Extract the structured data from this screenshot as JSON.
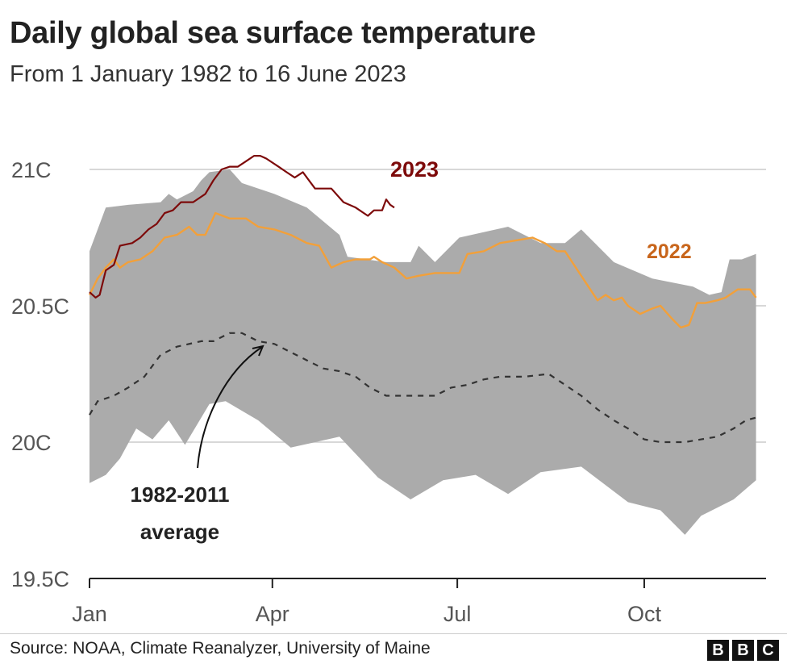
{
  "header": {
    "title": "Daily global sea surface temperature",
    "subtitle": "From 1 January 1982 to 16 June 2023"
  },
  "footer": {
    "source": "Source: NOAA, Climate Reanalyzer, University of Maine",
    "logo": [
      "B",
      "B",
      "C"
    ]
  },
  "chart_data": {
    "type": "line",
    "title": "Daily global sea surface temperature",
    "subtitle": "From 1 January 1982 to 16 June 2023",
    "xlabel": "",
    "ylabel": "",
    "ylim": [
      19.5,
      21.05
    ],
    "yticks": [
      {
        "value": 19.5,
        "label": "19.5C"
      },
      {
        "value": 20,
        "label": "20C"
      },
      {
        "value": 20.5,
        "label": "20.5C"
      },
      {
        "value": 21,
        "label": "21C"
      }
    ],
    "xticks": [
      {
        "date": "Jan 1",
        "label": "Jan"
      },
      {
        "date": "Apr 1",
        "label": "Apr"
      },
      {
        "date": "Jul 1",
        "label": "Jul"
      },
      {
        "date": "Oct 1",
        "label": "Oct"
      }
    ],
    "grid": "horizontal",
    "colors": {
      "y2023": "#7d0a0a",
      "y2022": "#f2a03a",
      "label2022": "#c8651b",
      "range": "#ababab",
      "average": "#333333"
    },
    "range_band": {
      "upper": [
        [
          "Jan 1",
          20.7
        ],
        [
          "Jan 9",
          20.86
        ],
        [
          "Jan 20",
          20.87
        ],
        [
          "Feb 5",
          20.88
        ],
        [
          "Feb 9",
          20.91
        ],
        [
          "Feb 13",
          20.89
        ],
        [
          "Feb 21",
          20.92
        ],
        [
          "Feb 25",
          20.96
        ],
        [
          "Mar 1",
          20.99
        ],
        [
          "Mar 11",
          21.0
        ],
        [
          "Mar 17",
          20.95
        ],
        [
          "Apr 2",
          20.91
        ],
        [
          "Apr 18",
          20.86
        ],
        [
          "May 4",
          20.76
        ],
        [
          "May 8",
          20.68
        ],
        [
          "May 27",
          20.66
        ],
        [
          "Jun 8",
          20.66
        ],
        [
          "Jun 12",
          20.72
        ],
        [
          "Jun 20",
          20.66
        ],
        [
          "Jul 2",
          20.75
        ],
        [
          "Jul 26",
          20.79
        ],
        [
          "Aug 11",
          20.73
        ],
        [
          "Aug 23",
          20.73
        ],
        [
          "Aug 31",
          20.78
        ],
        [
          "Sep 16",
          20.66
        ],
        [
          "Oct 5",
          20.6
        ],
        [
          "Oct 25",
          20.57
        ],
        [
          "Nov 2",
          20.54
        ],
        [
          "Nov 8",
          20.55
        ],
        [
          "Nov 12",
          20.67
        ],
        [
          "Nov 18",
          20.67
        ],
        [
          "Nov 25",
          20.69
        ]
      ],
      "lower": [
        [
          "Jan 1",
          19.85
        ],
        [
          "Jan 9",
          19.88
        ],
        [
          "Jan 16",
          19.94
        ],
        [
          "Jan 24",
          20.05
        ],
        [
          "Feb 1",
          20.01
        ],
        [
          "Feb 9",
          20.08
        ],
        [
          "Feb 17",
          19.99
        ],
        [
          "Mar 1",
          20.14
        ],
        [
          "Mar 9",
          20.15
        ],
        [
          "Mar 25",
          20.08
        ],
        [
          "Apr 10",
          19.98
        ],
        [
          "May 4",
          20.02
        ],
        [
          "May 23",
          19.87
        ],
        [
          "Jun 8",
          19.79
        ],
        [
          "Jun 24",
          19.86
        ],
        [
          "Jul 10",
          19.88
        ],
        [
          "Jul 26",
          19.81
        ],
        [
          "Aug 11",
          19.89
        ],
        [
          "Aug 31",
          19.91
        ],
        [
          "Sep 23",
          19.78
        ],
        [
          "Oct 9",
          19.75
        ],
        [
          "Oct 21",
          19.66
        ],
        [
          "Oct 29",
          19.73
        ],
        [
          "Nov 14",
          19.79
        ],
        [
          "Nov 25",
          19.86
        ]
      ]
    },
    "series": [
      {
        "name": "2023",
        "points": [
          [
            "Jan 1",
            20.55
          ],
          [
            "Jan 4",
            20.53
          ],
          [
            "Jan 6",
            20.54
          ],
          [
            "Jan 9",
            20.63
          ],
          [
            "Jan 13",
            20.65
          ],
          [
            "Jan 16",
            20.72
          ],
          [
            "Jan 22",
            20.73
          ],
          [
            "Jan 26",
            20.75
          ],
          [
            "Jan 30",
            20.78
          ],
          [
            "Feb 3",
            20.8
          ],
          [
            "Feb 7",
            20.84
          ],
          [
            "Feb 11",
            20.85
          ],
          [
            "Feb 15",
            20.88
          ],
          [
            "Feb 21",
            20.88
          ],
          [
            "Feb 27",
            20.91
          ],
          [
            "Mar 3",
            20.96
          ],
          [
            "Mar 7",
            21.0
          ],
          [
            "Mar 11",
            21.01
          ],
          [
            "Mar 15",
            21.01
          ],
          [
            "Mar 19",
            21.03
          ],
          [
            "Mar 23",
            21.05
          ],
          [
            "Mar 26",
            21.05
          ],
          [
            "Mar 29",
            21.04
          ],
          [
            "Apr 4",
            21.01
          ],
          [
            "Apr 8",
            20.99
          ],
          [
            "Apr 12",
            20.97
          ],
          [
            "Apr 16",
            20.99
          ],
          [
            "Apr 22",
            20.93
          ],
          [
            "Apr 30",
            20.93
          ],
          [
            "May 6",
            20.88
          ],
          [
            "May 12",
            20.86
          ],
          [
            "May 18",
            20.83
          ],
          [
            "May 21",
            20.85
          ],
          [
            "May 25",
            20.85
          ],
          [
            "May 27",
            20.89
          ],
          [
            "May 29",
            20.87
          ],
          [
            "May 31",
            20.86
          ]
        ]
      },
      {
        "name": "2022",
        "points": [
          [
            "Jan 1",
            20.54
          ],
          [
            "Jan 5",
            20.6
          ],
          [
            "Jan 9",
            20.64
          ],
          [
            "Jan 13",
            20.67
          ],
          [
            "Jan 16",
            20.64
          ],
          [
            "Jan 20",
            20.66
          ],
          [
            "Jan 26",
            20.67
          ],
          [
            "Feb 1",
            20.7
          ],
          [
            "Feb 7",
            20.75
          ],
          [
            "Feb 13",
            20.76
          ],
          [
            "Feb 19",
            20.79
          ],
          [
            "Feb 23",
            20.76
          ],
          [
            "Feb 27",
            20.76
          ],
          [
            "Mar 4",
            20.84
          ],
          [
            "Mar 11",
            20.82
          ],
          [
            "Mar 19",
            20.82
          ],
          [
            "Mar 25",
            20.79
          ],
          [
            "Apr 2",
            20.78
          ],
          [
            "Apr 10",
            20.76
          ],
          [
            "Apr 18",
            20.73
          ],
          [
            "Apr 24",
            20.72
          ],
          [
            "Apr 30",
            20.64
          ],
          [
            "May 6",
            20.66
          ],
          [
            "May 12",
            20.67
          ],
          [
            "May 19",
            20.67
          ],
          [
            "May 21",
            20.68
          ],
          [
            "May 25",
            20.66
          ],
          [
            "May 31",
            20.64
          ],
          [
            "Jun 6",
            20.6
          ],
          [
            "Jun 12",
            20.61
          ],
          [
            "Jun 20",
            20.62
          ],
          [
            "Jul 2",
            20.62
          ],
          [
            "Jul 6",
            20.69
          ],
          [
            "Jul 14",
            20.7
          ],
          [
            "Jul 22",
            20.73
          ],
          [
            "Jul 30",
            20.74
          ],
          [
            "Aug 7",
            20.75
          ],
          [
            "Aug 13",
            20.73
          ],
          [
            "Aug 19",
            20.7
          ],
          [
            "Aug 23",
            20.7
          ],
          [
            "Aug 31",
            20.61
          ],
          [
            "Sep 8",
            20.52
          ],
          [
            "Sep 12",
            20.54
          ],
          [
            "Sep 16",
            20.52
          ],
          [
            "Sep 20",
            20.53
          ],
          [
            "Sep 23",
            20.5
          ],
          [
            "Sep 29",
            20.47
          ],
          [
            "Oct 5",
            20.49
          ],
          [
            "Oct 9",
            20.5
          ],
          [
            "Oct 15",
            20.45
          ],
          [
            "Oct 19",
            20.42
          ],
          [
            "Oct 23",
            20.43
          ],
          [
            "Oct 27",
            20.51
          ],
          [
            "Oct 31",
            20.51
          ],
          [
            "Nov 6",
            20.52
          ],
          [
            "Nov 10",
            20.53
          ],
          [
            "Nov 16",
            20.56
          ],
          [
            "Nov 22",
            20.56
          ],
          [
            "Nov 25",
            20.53
          ]
        ]
      },
      {
        "name": "1982-2011 average",
        "points": [
          [
            "Jan 1",
            20.1
          ],
          [
            "Jan 5",
            20.15
          ],
          [
            "Jan 13",
            20.17
          ],
          [
            "Jan 20",
            20.2
          ],
          [
            "Jan 28",
            20.24
          ],
          [
            "Feb 5",
            20.32
          ],
          [
            "Feb 13",
            20.35
          ],
          [
            "Feb 25",
            20.37
          ],
          [
            "Mar 3",
            20.37
          ],
          [
            "Mar 11",
            20.4
          ],
          [
            "Mar 17",
            20.4
          ],
          [
            "Mar 25",
            20.37
          ],
          [
            "Apr 2",
            20.36
          ],
          [
            "Apr 10",
            20.33
          ],
          [
            "Apr 18",
            20.3
          ],
          [
            "Apr 26",
            20.27
          ],
          [
            "May 4",
            20.26
          ],
          [
            "May 12",
            20.24
          ],
          [
            "May 19",
            20.2
          ],
          [
            "May 27",
            20.17
          ],
          [
            "Jun 4",
            20.17
          ],
          [
            "Jun 20",
            20.17
          ],
          [
            "Jun 28",
            20.2
          ],
          [
            "Jul 6",
            20.21
          ],
          [
            "Jul 14",
            20.23
          ],
          [
            "Jul 22",
            20.24
          ],
          [
            "Aug 3",
            20.24
          ],
          [
            "Aug 15",
            20.25
          ],
          [
            "Aug 23",
            20.21
          ],
          [
            "Aug 31",
            20.17
          ],
          [
            "Sep 8",
            20.12
          ],
          [
            "Sep 16",
            20.08
          ],
          [
            "Sep 23",
            20.05
          ],
          [
            "Oct 1",
            20.01
          ],
          [
            "Oct 9",
            20.0
          ],
          [
            "Oct 21",
            20.0
          ],
          [
            "Oct 29",
            20.01
          ],
          [
            "Nov 6",
            20.02
          ],
          [
            "Nov 14",
            20.05
          ],
          [
            "Nov 20",
            20.08
          ],
          [
            "Nov 25",
            20.09
          ]
        ]
      }
    ],
    "annotations": {
      "label_2023": "2023",
      "label_2022": "2022",
      "average_line1": "1982-2011",
      "average_line2": "average"
    }
  }
}
